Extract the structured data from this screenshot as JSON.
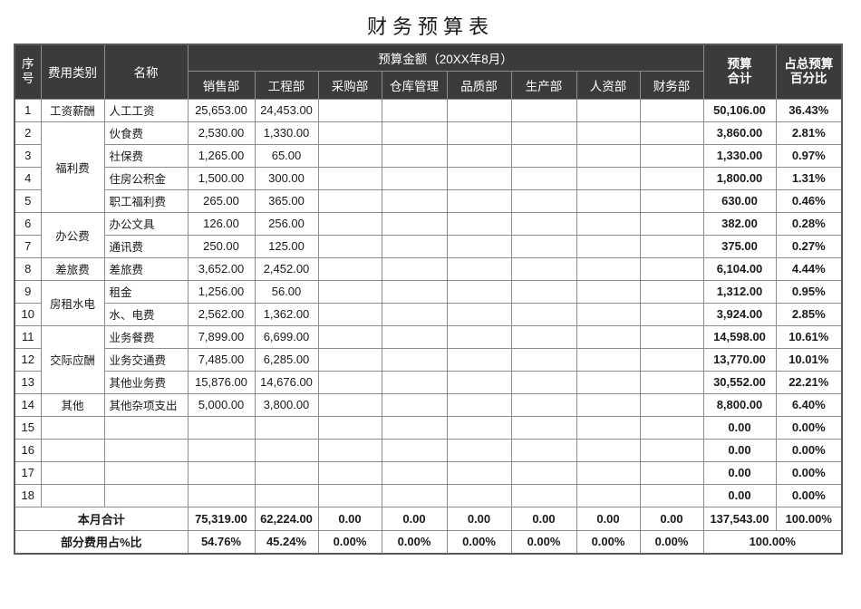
{
  "title": "财务预算表",
  "colors": {
    "header_background": "#3b3b3b",
    "header_text": "#ffffff",
    "body_text": "#1a1a1a",
    "grid_border": "#8c8c8c"
  },
  "table": {
    "header": {
      "col_no": "序\n号",
      "col_category": "费用类别",
      "col_name": "名称",
      "budget_group": "预算金额（20XX年8月）",
      "departments": [
        "销售部",
        "工程部",
        "采购部",
        "仓库管理",
        "品质部",
        "生产部",
        "人资部",
        "财务部"
      ],
      "col_total": "预算\n合计",
      "col_percent": "占总预算\n百分比"
    },
    "rows": [
      {
        "no": "1",
        "category": "工资薪酬",
        "category_rowspan": 1,
        "name": "人工工资",
        "values": [
          "25,653.00",
          "24,453.00",
          "",
          "",
          "",
          "",
          "",
          ""
        ],
        "total": "50,106.00",
        "percent": "36.43%"
      },
      {
        "no": "2",
        "category": "福利费",
        "category_rowspan": 4,
        "name": "伙食费",
        "values": [
          "2,530.00",
          "1,330.00",
          "",
          "",
          "",
          "",
          "",
          ""
        ],
        "total": "3,860.00",
        "percent": "2.81%"
      },
      {
        "no": "3",
        "category": null,
        "name": "社保费",
        "values": [
          "1,265.00",
          "65.00",
          "",
          "",
          "",
          "",
          "",
          ""
        ],
        "total": "1,330.00",
        "percent": "0.97%"
      },
      {
        "no": "4",
        "category": null,
        "name": "住房公积金",
        "values": [
          "1,500.00",
          "300.00",
          "",
          "",
          "",
          "",
          "",
          ""
        ],
        "total": "1,800.00",
        "percent": "1.31%"
      },
      {
        "no": "5",
        "category": null,
        "name": "职工福利费",
        "values": [
          "265.00",
          "365.00",
          "",
          "",
          "",
          "",
          "",
          ""
        ],
        "total": "630.00",
        "percent": "0.46%"
      },
      {
        "no": "6",
        "category": "办公费",
        "category_rowspan": 2,
        "name": "办公文具",
        "values": [
          "126.00",
          "256.00",
          "",
          "",
          "",
          "",
          "",
          ""
        ],
        "total": "382.00",
        "percent": "0.28%"
      },
      {
        "no": "7",
        "category": null,
        "name": "通讯费",
        "values": [
          "250.00",
          "125.00",
          "",
          "",
          "",
          "",
          "",
          ""
        ],
        "total": "375.00",
        "percent": "0.27%"
      },
      {
        "no": "8",
        "category": "差旅费",
        "category_rowspan": 1,
        "name": "差旅费",
        "values": [
          "3,652.00",
          "2,452.00",
          "",
          "",
          "",
          "",
          "",
          ""
        ],
        "total": "6,104.00",
        "percent": "4.44%"
      },
      {
        "no": "9",
        "category": "房租水电",
        "category_rowspan": 2,
        "name": "租金",
        "values": [
          "1,256.00",
          "56.00",
          "",
          "",
          "",
          "",
          "",
          ""
        ],
        "total": "1,312.00",
        "percent": "0.95%"
      },
      {
        "no": "10",
        "category": null,
        "name": "水、电费",
        "values": [
          "2,562.00",
          "1,362.00",
          "",
          "",
          "",
          "",
          "",
          ""
        ],
        "total": "3,924.00",
        "percent": "2.85%"
      },
      {
        "no": "11",
        "category": "交际应酬",
        "category_rowspan": 3,
        "name": "业务餐费",
        "values": [
          "7,899.00",
          "6,699.00",
          "",
          "",
          "",
          "",
          "",
          ""
        ],
        "total": "14,598.00",
        "percent": "10.61%"
      },
      {
        "no": "12",
        "category": null,
        "name": "业务交通费",
        "values": [
          "7,485.00",
          "6,285.00",
          "",
          "",
          "",
          "",
          "",
          ""
        ],
        "total": "13,770.00",
        "percent": "10.01%"
      },
      {
        "no": "13",
        "category": null,
        "name": "其他业务费",
        "values": [
          "15,876.00",
          "14,676.00",
          "",
          "",
          "",
          "",
          "",
          ""
        ],
        "total": "30,552.00",
        "percent": "22.21%"
      },
      {
        "no": "14",
        "category": "其他",
        "category_rowspan": 1,
        "name": "其他杂项支出",
        "values": [
          "5,000.00",
          "3,800.00",
          "",
          "",
          "",
          "",
          "",
          ""
        ],
        "total": "8,800.00",
        "percent": "6.40%"
      },
      {
        "no": "15",
        "category": "",
        "category_rowspan": 1,
        "name": "",
        "values": [
          "",
          "",
          "",
          "",
          "",
          "",
          "",
          ""
        ],
        "total": "0.00",
        "percent": "0.00%"
      },
      {
        "no": "16",
        "category": "",
        "category_rowspan": 1,
        "name": "",
        "values": [
          "",
          "",
          "",
          "",
          "",
          "",
          "",
          ""
        ],
        "total": "0.00",
        "percent": "0.00%"
      },
      {
        "no": "17",
        "category": "",
        "category_rowspan": 1,
        "name": "",
        "values": [
          "",
          "",
          "",
          "",
          "",
          "",
          "",
          ""
        ],
        "total": "0.00",
        "percent": "0.00%"
      },
      {
        "no": "18",
        "category": "",
        "category_rowspan": 1,
        "name": "",
        "values": [
          "",
          "",
          "",
          "",
          "",
          "",
          "",
          ""
        ],
        "total": "0.00",
        "percent": "0.00%"
      }
    ],
    "footer": {
      "total_label": "本月合计",
      "total_values": [
        "75,319.00",
        "62,224.00",
        "0.00",
        "0.00",
        "0.00",
        "0.00",
        "0.00",
        "0.00"
      ],
      "total_sum": "137,543.00",
      "total_percent": "100.00%",
      "percent_label": "部分费用占%比",
      "percent_values": [
        "54.76%",
        "45.24%",
        "0.00%",
        "0.00%",
        "0.00%",
        "0.00%",
        "0.00%",
        "0.00%"
      ],
      "percent_sum": "100.00%"
    }
  }
}
